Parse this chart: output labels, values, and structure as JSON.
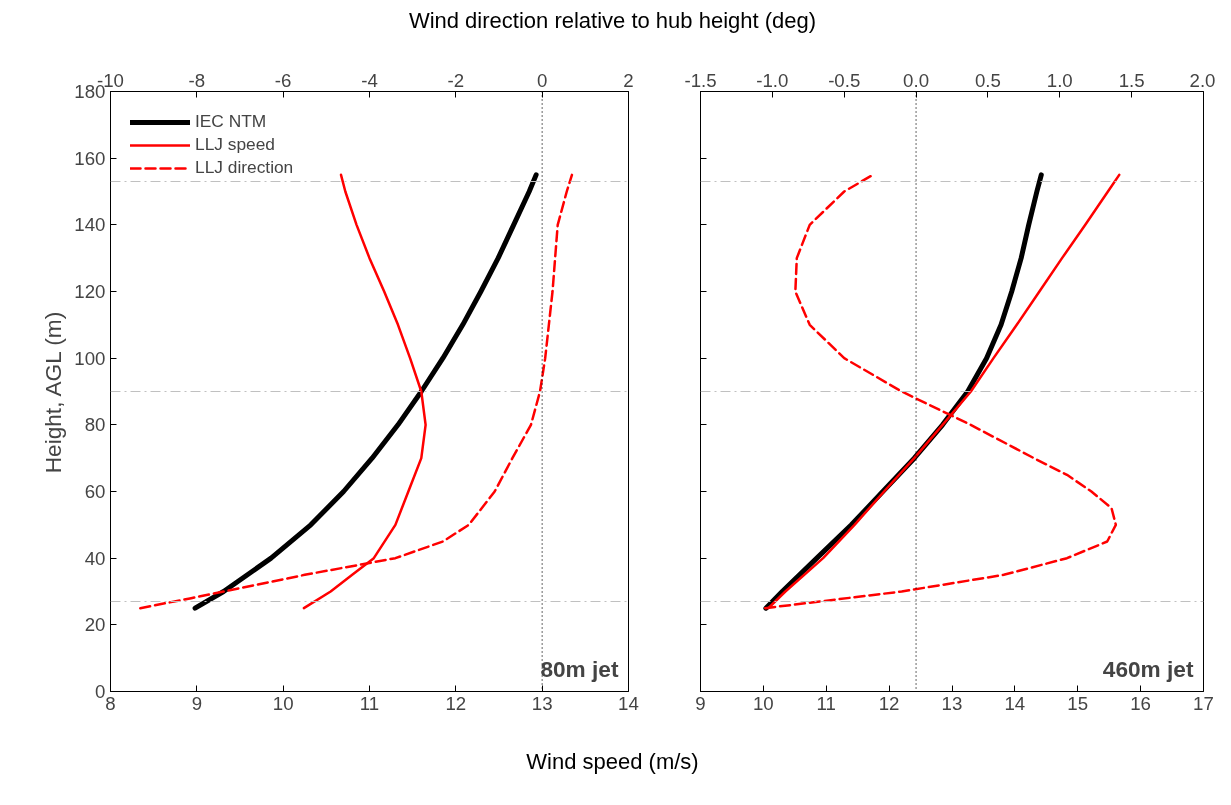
{
  "chart_data": [
    {
      "type": "line",
      "xlabel": "Wind speed (m/s)",
      "x2label": "Wind direction relative to hub height (deg)",
      "ylabel": "Height, AGL (m)",
      "xlim": [
        8,
        14
      ],
      "xticks": [
        8,
        9,
        10,
        11,
        12,
        13,
        14
      ],
      "x2lim": [
        -10,
        2
      ],
      "x2ticks": [
        -10,
        -8,
        -6,
        -4,
        -2,
        0,
        2
      ],
      "ylim": [
        0,
        180
      ],
      "yticks": [
        0,
        20,
        40,
        60,
        80,
        100,
        120,
        140,
        160,
        180
      ],
      "grid": false,
      "legend": "top left",
      "annotations": [
        "80m jet"
      ],
      "ref_lines": [
        {
          "axis": "y",
          "value": 153,
          "color": "#c0c0c0",
          "line_style": "dashdot"
        },
        {
          "axis": "y",
          "value": 90,
          "color": "#c0c0c0",
          "line_style": "dashdot"
        },
        {
          "axis": "y",
          "value": 27,
          "color": "#c0c0c0",
          "line_style": "dashdot"
        },
        {
          "axis": "x2",
          "value": 0,
          "color": "#000000",
          "line_style": "dotted"
        }
      ],
      "series": [
        {
          "name": "IEC NTM",
          "color": "#000000",
          "line_style": "solid",
          "x": [
            8.98,
            9.31,
            9.86,
            10.32,
            10.7,
            11.03,
            11.33,
            11.6,
            11.85,
            12.08,
            12.29,
            12.49,
            12.67,
            12.85,
            12.93
          ],
          "values": [
            25,
            30,
            40,
            50,
            60,
            70,
            80,
            90,
            100,
            110,
            120,
            130,
            140,
            150,
            155
          ]
        },
        {
          "name": "LLJ speed",
          "color": "#ff0000",
          "line_style": "solid",
          "x": [
            10.24,
            10.55,
            10.8,
            11.05,
            11.3,
            11.45,
            11.6,
            11.65,
            11.6,
            11.47,
            11.33,
            11.17,
            11.0,
            10.85,
            10.72,
            10.67
          ],
          "values": [
            25,
            30,
            35,
            40,
            50,
            60,
            70,
            80,
            90,
            100,
            110,
            120,
            130,
            140,
            150,
            155
          ]
        },
        {
          "name": "LLJ direction",
          "color": "#ff0000",
          "line_style": "dashed",
          "axis": "x2",
          "x": [
            -9.31,
            -8.13,
            -5.5,
            -3.4,
            -2.3,
            -1.7,
            -1.1,
            -0.69,
            -0.26,
            -0.05,
            0.07,
            0.24,
            0.36,
            0.57,
            0.69
          ],
          "values": [
            25,
            28,
            35,
            40,
            45,
            50,
            60,
            70,
            80,
            90,
            100,
            120,
            140,
            150,
            155
          ]
        }
      ]
    },
    {
      "type": "line",
      "xlim": [
        9,
        17
      ],
      "xticks": [
        9,
        10,
        11,
        12,
        13,
        14,
        15,
        16,
        17
      ],
      "x2lim": [
        -1.5,
        2.0
      ],
      "x2ticks": [
        {
          "value": -1.5,
          "label": "-1.5"
        },
        {
          "value": -1,
          "label": "-1.0"
        },
        {
          "value": -0.5,
          "label": "-0.5"
        },
        {
          "value": 0,
          "label": "0.0"
        },
        {
          "value": 0.5,
          "label": "0.5"
        },
        {
          "value": 1,
          "label": "1.0"
        },
        {
          "value": 1.5,
          "label": "1.5"
        },
        {
          "value": 2,
          "label": "2.0"
        }
      ],
      "ylim": [
        0,
        180
      ],
      "yticks": [
        0,
        20,
        40,
        60,
        80,
        100,
        120,
        140,
        160,
        180
      ],
      "tick_labels": "x",
      "grid": false,
      "annotations": [
        "460m jet"
      ],
      "ref_lines": [
        {
          "axis": "y",
          "value": 153,
          "color": "#c0c0c0",
          "line_style": "dashdot"
        },
        {
          "axis": "y",
          "value": 90,
          "color": "#c0c0c0",
          "line_style": "dashdot"
        },
        {
          "axis": "y",
          "value": 27,
          "color": "#c0c0c0",
          "line_style": "dashdot"
        },
        {
          "axis": "x2",
          "value": 0,
          "color": "#000000",
          "line_style": "dotted"
        }
      ],
      "series": [
        {
          "color": "#000000",
          "line_style": "solid",
          "x": [
            10.04,
            10.3,
            10.85,
            11.4,
            11.9,
            12.4,
            12.85,
            13.25,
            13.55,
            13.78,
            13.95,
            14.1,
            14.22,
            14.35,
            14.42
          ],
          "values": [
            25,
            30,
            40,
            50,
            60,
            70,
            80,
            90,
            100,
            110,
            120,
            130,
            140,
            150,
            155
          ]
        },
        {
          "color": "#ff0000",
          "line_style": "solid",
          "x": [
            10.08,
            10.35,
            10.95,
            11.45,
            11.92,
            12.4,
            12.85,
            13.3,
            13.66,
            14.03,
            14.39,
            14.75,
            15.12,
            15.48,
            15.66
          ],
          "values": [
            25,
            30,
            40,
            50,
            60,
            70,
            80,
            90,
            100,
            110,
            120,
            130,
            140,
            150,
            155
          ]
        },
        {
          "color": "#ff0000",
          "line_style": "dashed",
          "axis": "x2",
          "x": [
            -1.05,
            -0.1,
            0.61,
            1.05,
            1.33,
            1.39,
            1.36,
            1.22,
            1.05,
            0.82,
            0.38,
            -0.1,
            -0.5,
            -0.74,
            -0.84,
            -0.83,
            -0.74,
            -0.5,
            -0.3
          ],
          "values": [
            25,
            30,
            35,
            40,
            45,
            50,
            55,
            60,
            65,
            70,
            80,
            90,
            100,
            110,
            120,
            130,
            140,
            150,
            155
          ]
        }
      ]
    }
  ]
}
